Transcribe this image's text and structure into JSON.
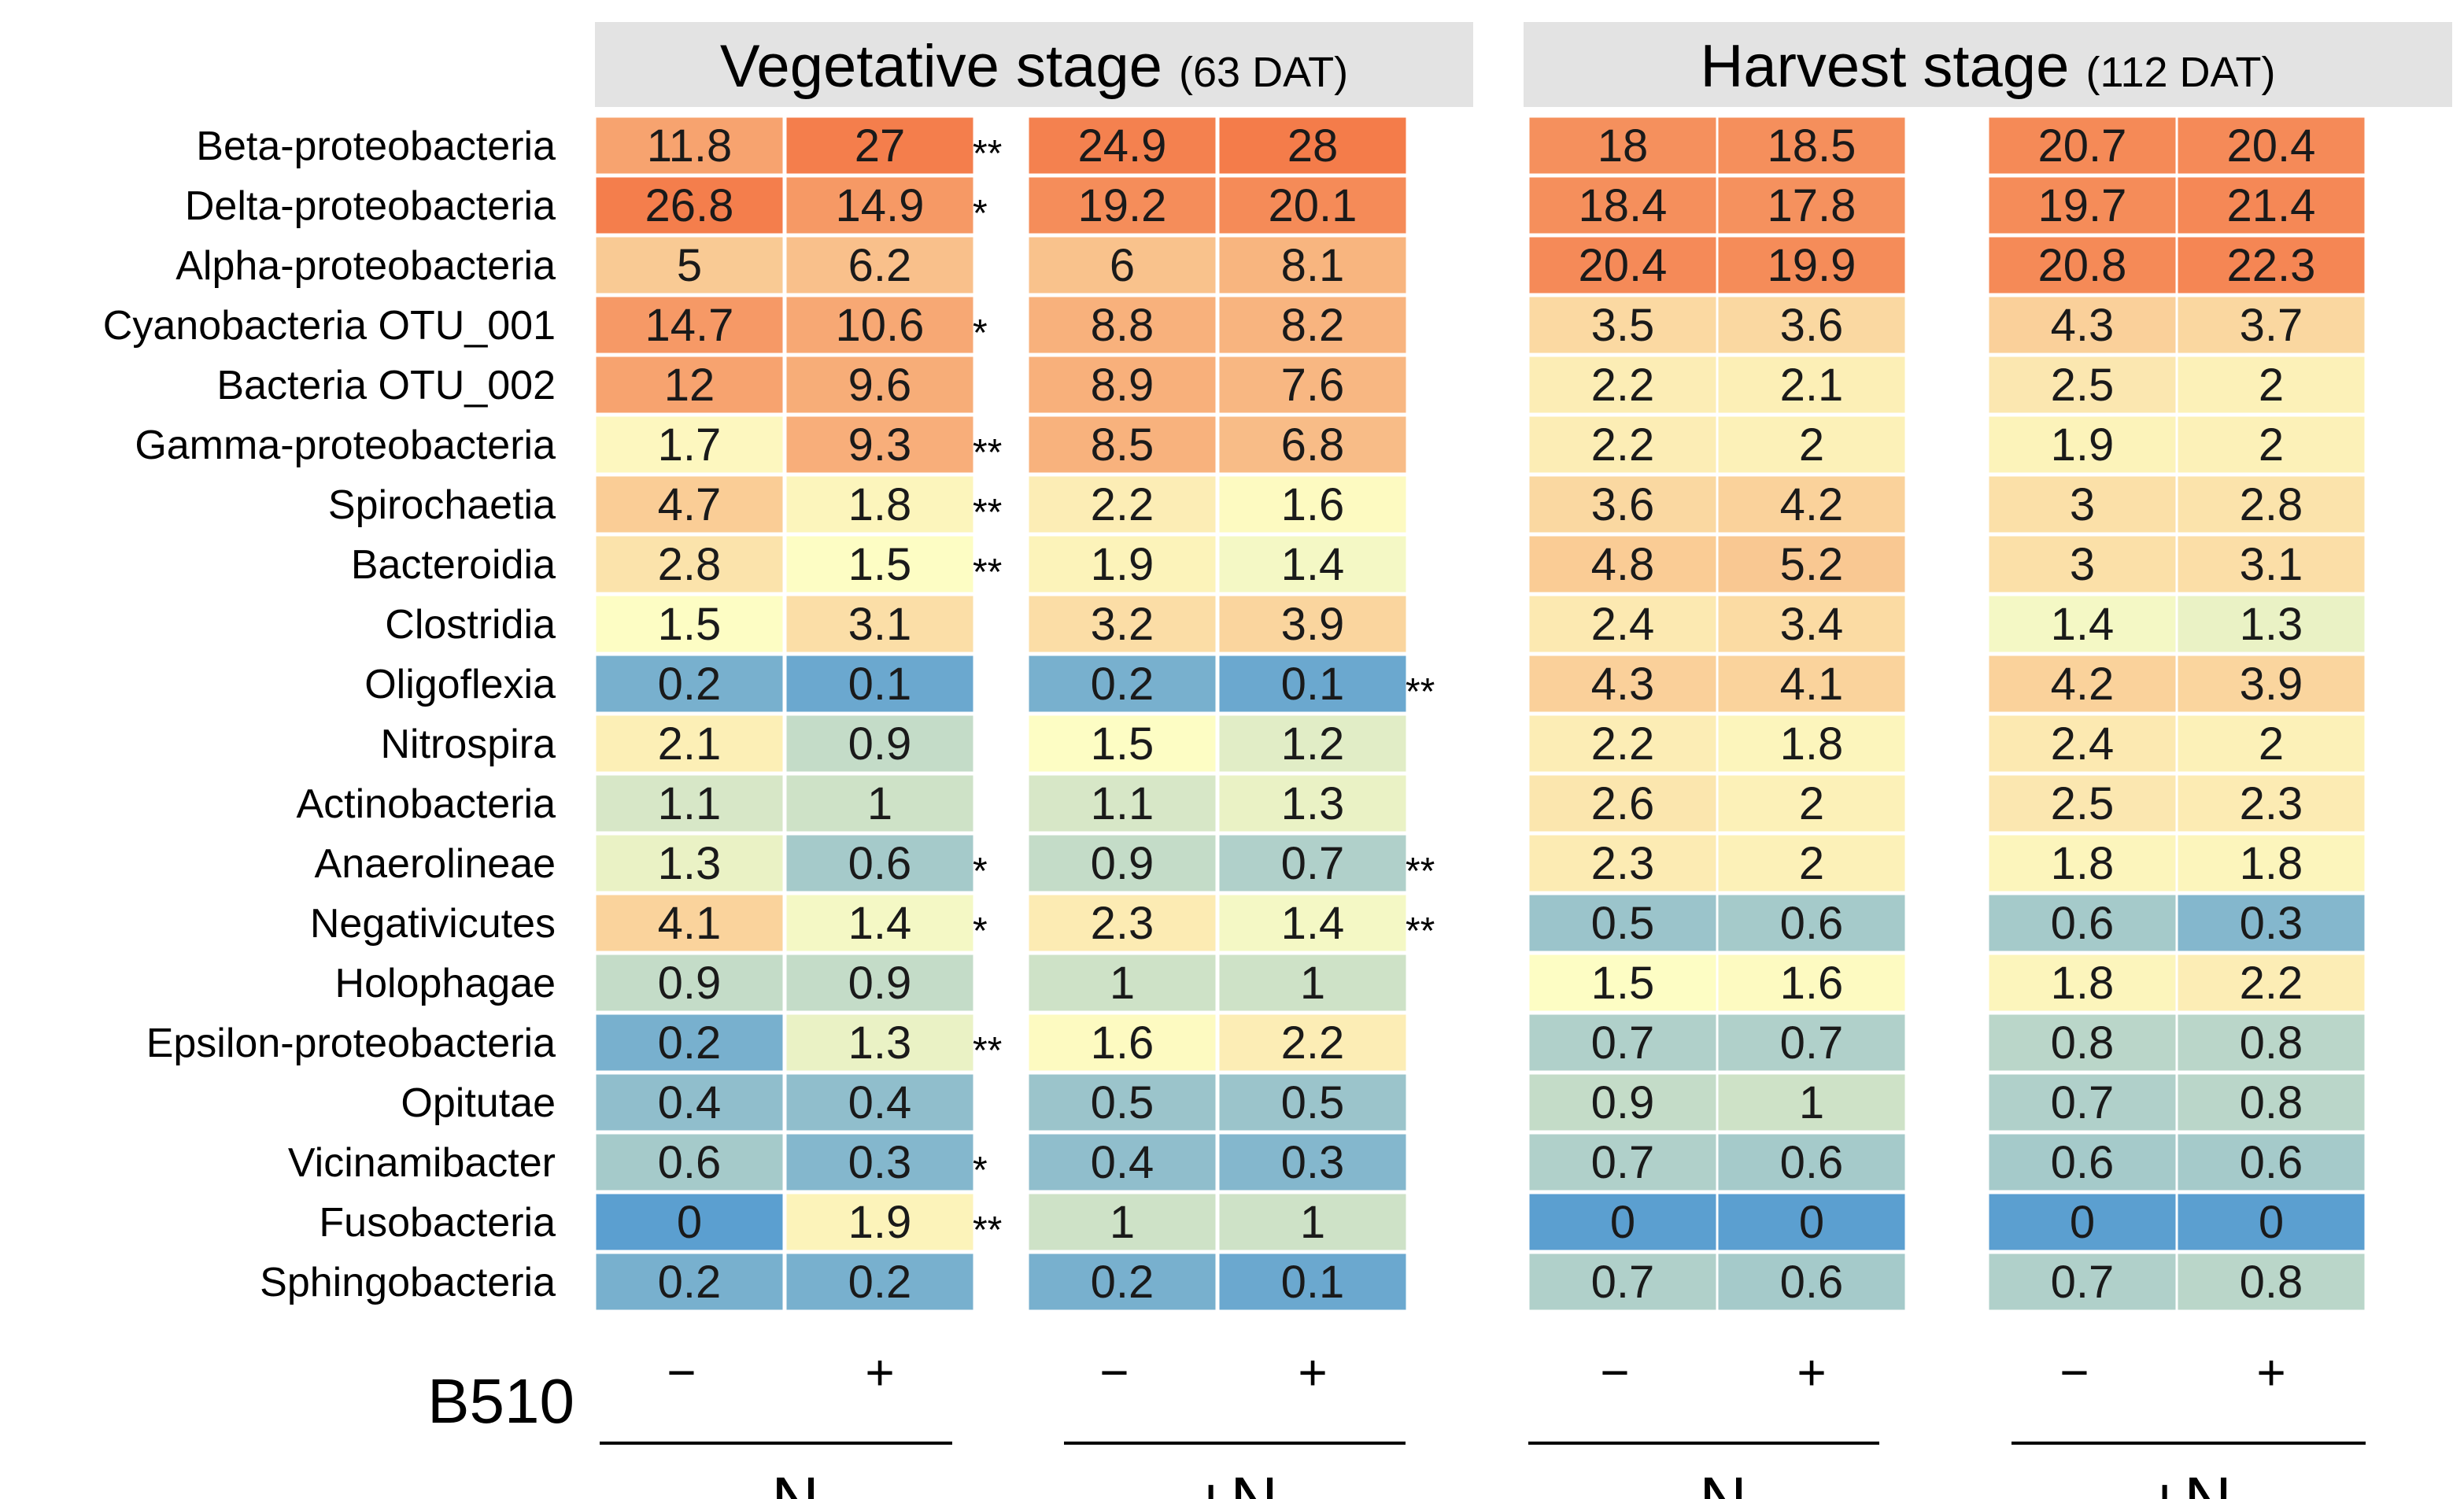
{
  "chart_data": {
    "type": "heatmap",
    "title": "",
    "stages": [
      {
        "title": "Vegetative stage",
        "subtitle": "(63 DAT)"
      },
      {
        "title": "Harvest stage",
        "subtitle": "(112 DAT)"
      }
    ],
    "row_labels": [
      "Beta-proteobacteria",
      "Delta-proteobacteria",
      "Alpha-proteobacteria",
      "Cyanobacteria OTU_001",
      "Bacteria OTU_002",
      "Gamma-proteobacteria",
      "Spirochaetia",
      "Bacteroidia",
      "Clostridia",
      "Oligoflexia",
      "Nitrospira",
      "Actinobacteria",
      "Anaerolineae",
      "Negativicutes",
      "Holophagae",
      "Epsilon-proteobacteria",
      "Opitutae",
      "Vicinamibacter",
      "Fusobacteria",
      "Sphingobacteria"
    ],
    "b510_label": "B510",
    "nitrogen_label_minus": "−N",
    "nitrogen_label_plus": "+N",
    "b510_minus": "−",
    "b510_plus": "+",
    "columns": [
      {
        "stage": 0,
        "nitrogen": "−N",
        "b510": "−"
      },
      {
        "stage": 0,
        "nitrogen": "−N",
        "b510": "+"
      },
      {
        "stage": 0,
        "nitrogen": "+N",
        "b510": "−"
      },
      {
        "stage": 0,
        "nitrogen": "+N",
        "b510": "+"
      },
      {
        "stage": 1,
        "nitrogen": "−N",
        "b510": "−"
      },
      {
        "stage": 1,
        "nitrogen": "−N",
        "b510": "+"
      },
      {
        "stage": 1,
        "nitrogen": "+N",
        "b510": "−"
      },
      {
        "stage": 1,
        "nitrogen": "+N",
        "b510": "+"
      }
    ],
    "values": [
      [
        11.8,
        27,
        24.9,
        28,
        18,
        18.5,
        20.7,
        20.4
      ],
      [
        26.8,
        14.9,
        19.2,
        20.1,
        18.4,
        17.8,
        19.7,
        21.4
      ],
      [
        5,
        6.2,
        6,
        8.1,
        20.4,
        19.9,
        20.8,
        22.3
      ],
      [
        14.7,
        10.6,
        8.8,
        8.2,
        3.5,
        3.6,
        4.3,
        3.7
      ],
      [
        12,
        9.6,
        8.9,
        7.6,
        2.2,
        2.1,
        2.5,
        2
      ],
      [
        1.7,
        9.3,
        8.5,
        6.8,
        2.2,
        2,
        1.9,
        2
      ],
      [
        4.7,
        1.8,
        2.2,
        1.6,
        3.6,
        4.2,
        3,
        2.8
      ],
      [
        2.8,
        1.5,
        1.9,
        1.4,
        4.8,
        5.2,
        3,
        3.1
      ],
      [
        1.5,
        3.1,
        3.2,
        3.9,
        2.4,
        3.4,
        1.4,
        1.3
      ],
      [
        0.2,
        0.1,
        0.2,
        0.1,
        4.3,
        4.1,
        4.2,
        3.9
      ],
      [
        2.1,
        0.9,
        1.5,
        1.2,
        2.2,
        1.8,
        2.4,
        2
      ],
      [
        1.1,
        1,
        1.1,
        1.3,
        2.6,
        2,
        2.5,
        2.3
      ],
      [
        1.3,
        0.6,
        0.9,
        0.7,
        2.3,
        2,
        1.8,
        1.8
      ],
      [
        4.1,
        1.4,
        2.3,
        1.4,
        0.5,
        0.6,
        0.6,
        0.3
      ],
      [
        0.9,
        0.9,
        1,
        1,
        1.5,
        1.6,
        1.8,
        2.2
      ],
      [
        0.2,
        1.3,
        1.6,
        2.2,
        0.7,
        0.7,
        0.8,
        0.8
      ],
      [
        0.4,
        0.4,
        0.5,
        0.5,
        0.9,
        1,
        0.7,
        0.8
      ],
      [
        0.6,
        0.3,
        0.4,
        0.3,
        0.7,
        0.6,
        0.6,
        0.6
      ],
      [
        0,
        1.9,
        1,
        1,
        0,
        0,
        0,
        0
      ],
      [
        0.2,
        0.2,
        0.2,
        0.1,
        0.7,
        0.6,
        0.7,
        0.8
      ]
    ],
    "significance": {
      "veg_minusN": [
        "**",
        "*",
        "",
        "*",
        "",
        "**",
        "**",
        "**",
        "",
        "",
        "",
        "",
        "*",
        "*",
        "",
        "**",
        "",
        "*",
        "**",
        ""
      ],
      "veg_plusN": [
        "",
        "",
        "",
        "",
        "",
        "",
        "",
        "",
        "",
        "**",
        "",
        "",
        "**",
        "**",
        "",
        "",
        "",
        "",
        "",
        ""
      ]
    },
    "color_scale": {
      "type": "diverging",
      "midpoint": 1.5,
      "low": "#5b9fd0",
      "mid": "#fdfdc4",
      "high": "#f47c4a"
    }
  }
}
